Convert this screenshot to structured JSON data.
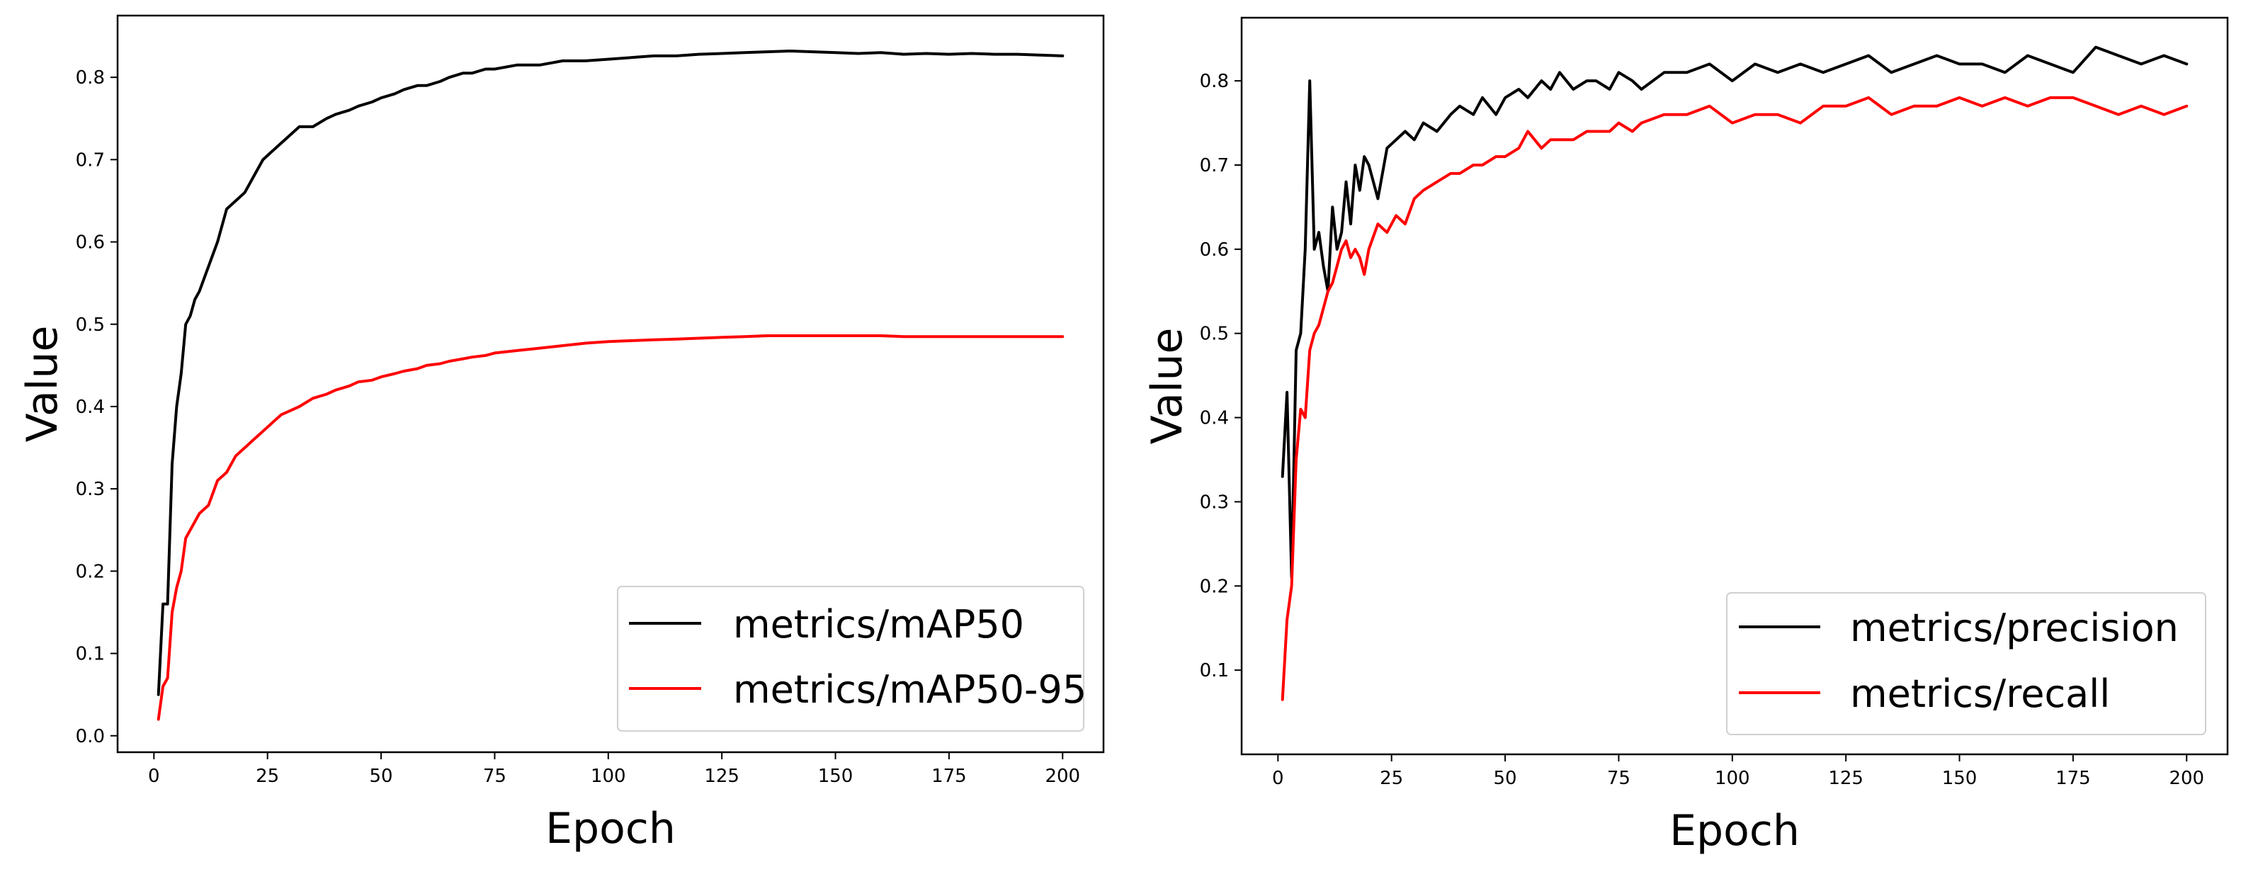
{
  "chart_data": [
    {
      "type": "line",
      "xlabel": "Epoch",
      "ylabel": "Value",
      "xlim": [
        -8,
        209
      ],
      "ylim": [
        -0.02,
        0.875
      ],
      "xticks": [
        0,
        25,
        50,
        75,
        100,
        125,
        150,
        175,
        200
      ],
      "yticks": [
        0.0,
        0.1,
        0.2,
        0.3,
        0.4,
        0.5,
        0.6,
        0.7,
        0.8
      ],
      "grid": false,
      "legend_position": "bottom-right",
      "series": [
        {
          "name": "metrics/mAP50",
          "color": "#000000",
          "x": [
            1,
            2,
            3,
            4,
            5,
            6,
            7,
            8,
            9,
            10,
            12,
            14,
            16,
            18,
            20,
            22,
            24,
            26,
            28,
            30,
            32,
            35,
            38,
            40,
            43,
            45,
            48,
            50,
            53,
            55,
            58,
            60,
            63,
            65,
            68,
            70,
            73,
            75,
            80,
            85,
            90,
            95,
            100,
            105,
            110,
            115,
            120,
            125,
            130,
            135,
            140,
            145,
            150,
            155,
            160,
            165,
            170,
            175,
            180,
            185,
            190,
            195,
            200
          ],
          "y": [
            0.05,
            0.16,
            0.16,
            0.33,
            0.4,
            0.44,
            0.5,
            0.51,
            0.53,
            0.54,
            0.57,
            0.6,
            0.64,
            0.65,
            0.66,
            0.68,
            0.7,
            0.71,
            0.72,
            0.73,
            0.74,
            0.74,
            0.75,
            0.755,
            0.76,
            0.765,
            0.77,
            0.775,
            0.78,
            0.785,
            0.79,
            0.79,
            0.795,
            0.8,
            0.805,
            0.805,
            0.81,
            0.81,
            0.815,
            0.815,
            0.82,
            0.82,
            0.822,
            0.824,
            0.826,
            0.826,
            0.828,
            0.829,
            0.83,
            0.831,
            0.832,
            0.831,
            0.83,
            0.829,
            0.83,
            0.828,
            0.829,
            0.828,
            0.829,
            0.828,
            0.828,
            0.827,
            0.826
          ]
        },
        {
          "name": "metrics/mAP50-95",
          "color": "#ff0000",
          "x": [
            1,
            2,
            3,
            4,
            5,
            6,
            7,
            8,
            9,
            10,
            12,
            14,
            16,
            18,
            20,
            22,
            24,
            26,
            28,
            30,
            32,
            35,
            38,
            40,
            43,
            45,
            48,
            50,
            53,
            55,
            58,
            60,
            63,
            65,
            68,
            70,
            73,
            75,
            80,
            85,
            90,
            95,
            100,
            105,
            110,
            115,
            120,
            125,
            130,
            135,
            140,
            145,
            150,
            155,
            160,
            165,
            170,
            175,
            180,
            185,
            190,
            195,
            200
          ],
          "y": [
            0.02,
            0.06,
            0.07,
            0.15,
            0.18,
            0.2,
            0.24,
            0.25,
            0.26,
            0.27,
            0.28,
            0.31,
            0.32,
            0.34,
            0.35,
            0.36,
            0.37,
            0.38,
            0.39,
            0.395,
            0.4,
            0.41,
            0.415,
            0.42,
            0.425,
            0.43,
            0.432,
            0.436,
            0.44,
            0.443,
            0.446,
            0.45,
            0.452,
            0.455,
            0.458,
            0.46,
            0.462,
            0.465,
            0.468,
            0.471,
            0.474,
            0.477,
            0.479,
            0.48,
            0.481,
            0.482,
            0.483,
            0.484,
            0.485,
            0.486,
            0.486,
            0.486,
            0.486,
            0.486,
            0.486,
            0.485,
            0.485,
            0.485,
            0.485,
            0.485,
            0.485,
            0.485,
            0.485
          ]
        }
      ]
    },
    {
      "type": "line",
      "xlabel": "Epoch",
      "ylabel": "Value",
      "xlim": [
        -8,
        209
      ],
      "ylim": [
        0.0,
        0.875
      ],
      "xticks": [
        0,
        25,
        50,
        75,
        100,
        125,
        150,
        175,
        200
      ],
      "yticks": [
        0.1,
        0.2,
        0.3,
        0.4,
        0.5,
        0.6,
        0.7,
        0.8
      ],
      "grid": false,
      "legend_position": "bottom-right",
      "series": [
        {
          "name": "metrics/precision",
          "color": "#000000",
          "x": [
            1,
            2,
            3,
            4,
            5,
            6,
            7,
            8,
            9,
            10,
            11,
            12,
            13,
            14,
            15,
            16,
            17,
            18,
            19,
            20,
            22,
            24,
            26,
            28,
            30,
            32,
            35,
            38,
            40,
            43,
            45,
            48,
            50,
            53,
            55,
            58,
            60,
            62,
            65,
            68,
            70,
            73,
            75,
            78,
            80,
            85,
            90,
            95,
            100,
            105,
            110,
            115,
            120,
            125,
            130,
            135,
            140,
            145,
            150,
            155,
            160,
            165,
            170,
            175,
            180,
            185,
            190,
            195,
            200
          ],
          "y": [
            0.33,
            0.43,
            0.21,
            0.48,
            0.5,
            0.6,
            0.8,
            0.6,
            0.62,
            0.58,
            0.55,
            0.65,
            0.6,
            0.62,
            0.68,
            0.63,
            0.7,
            0.67,
            0.71,
            0.7,
            0.66,
            0.72,
            0.73,
            0.74,
            0.73,
            0.75,
            0.74,
            0.76,
            0.77,
            0.76,
            0.78,
            0.76,
            0.78,
            0.79,
            0.78,
            0.8,
            0.79,
            0.81,
            0.79,
            0.8,
            0.8,
            0.79,
            0.81,
            0.8,
            0.79,
            0.81,
            0.81,
            0.82,
            0.8,
            0.82,
            0.81,
            0.82,
            0.81,
            0.82,
            0.83,
            0.81,
            0.82,
            0.83,
            0.82,
            0.82,
            0.81,
            0.83,
            0.82,
            0.81,
            0.84,
            0.83,
            0.82,
            0.83,
            0.82
          ]
        },
        {
          "name": "metrics/recall",
          "color": "#ff0000",
          "x": [
            1,
            2,
            3,
            4,
            5,
            6,
            7,
            8,
            9,
            10,
            11,
            12,
            13,
            14,
            15,
            16,
            17,
            18,
            19,
            20,
            22,
            24,
            26,
            28,
            30,
            32,
            35,
            38,
            40,
            43,
            45,
            48,
            50,
            53,
            55,
            58,
            60,
            62,
            65,
            68,
            70,
            73,
            75,
            78,
            80,
            85,
            90,
            95,
            100,
            105,
            110,
            115,
            120,
            125,
            130,
            135,
            140,
            145,
            150,
            155,
            160,
            165,
            170,
            175,
            180,
            185,
            190,
            195,
            200
          ],
          "y": [
            0.065,
            0.16,
            0.2,
            0.35,
            0.41,
            0.4,
            0.48,
            0.5,
            0.51,
            0.53,
            0.55,
            0.56,
            0.58,
            0.6,
            0.61,
            0.59,
            0.6,
            0.59,
            0.57,
            0.6,
            0.63,
            0.62,
            0.64,
            0.63,
            0.66,
            0.67,
            0.68,
            0.69,
            0.69,
            0.7,
            0.7,
            0.71,
            0.71,
            0.72,
            0.74,
            0.72,
            0.73,
            0.73,
            0.73,
            0.74,
            0.74,
            0.74,
            0.75,
            0.74,
            0.75,
            0.76,
            0.76,
            0.77,
            0.75,
            0.76,
            0.76,
            0.75,
            0.77,
            0.77,
            0.78,
            0.76,
            0.77,
            0.77,
            0.78,
            0.77,
            0.78,
            0.77,
            0.78,
            0.78,
            0.77,
            0.76,
            0.77,
            0.76,
            0.77
          ]
        }
      ]
    }
  ]
}
